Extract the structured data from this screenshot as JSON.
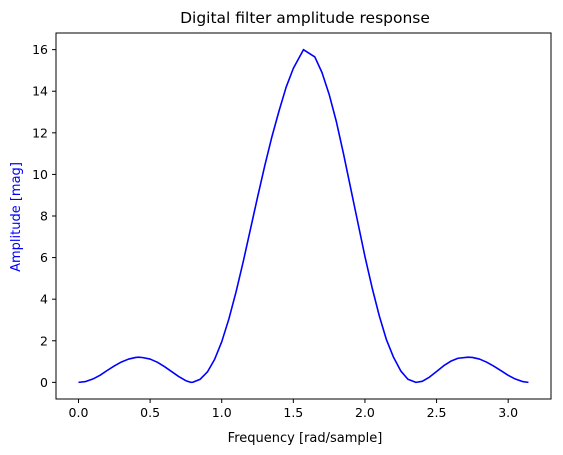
{
  "chart_data": {
    "type": "line",
    "title": "Digital filter amplitude response",
    "xlabel": "Frequency [rad/sample]",
    "ylabel": "Amplitude [mag]",
    "xlim": [
      -0.157,
      3.299
    ],
    "ylim": [
      -0.8,
      16.8
    ],
    "xticks": [
      0.0,
      0.5,
      1.0,
      1.5,
      2.0,
      2.5,
      3.0
    ],
    "xtick_labels": [
      "0.0",
      "0.5",
      "1.0",
      "1.5",
      "2.0",
      "2.5",
      "3.0"
    ],
    "yticks": [
      0,
      2,
      4,
      6,
      8,
      10,
      12,
      14,
      16
    ],
    "ytick_labels": [
      "0",
      "2",
      "4",
      "6",
      "8",
      "10",
      "12",
      "14",
      "16"
    ],
    "grid": false,
    "series": [
      {
        "color": "#0000ff",
        "ylabel_color": "#0000ff",
        "x": [
          0.0,
          0.05,
          0.1,
          0.15,
          0.2,
          0.25,
          0.3,
          0.35,
          0.4,
          0.42,
          0.45,
          0.5,
          0.55,
          0.6,
          0.65,
          0.7,
          0.75,
          0.785,
          0.8,
          0.85,
          0.9,
          0.95,
          1.0,
          1.05,
          1.1,
          1.15,
          1.2,
          1.25,
          1.3,
          1.35,
          1.4,
          1.45,
          1.5,
          1.571,
          1.65,
          1.7,
          1.75,
          1.8,
          1.85,
          1.9,
          1.95,
          2.0,
          2.05,
          2.1,
          2.15,
          2.2,
          2.25,
          2.3,
          2.356,
          2.4,
          2.45,
          2.5,
          2.55,
          2.6,
          2.65,
          2.72,
          2.75,
          2.8,
          2.85,
          2.9,
          2.95,
          3.0,
          3.05,
          3.1,
          3.1416
        ],
        "y": [
          0.0,
          0.04,
          0.16,
          0.34,
          0.57,
          0.79,
          0.98,
          1.12,
          1.2,
          1.21,
          1.19,
          1.12,
          0.97,
          0.76,
          0.52,
          0.28,
          0.08,
          0.0,
          0.01,
          0.15,
          0.5,
          1.1,
          1.95,
          3.05,
          4.35,
          5.8,
          7.35,
          8.9,
          10.4,
          11.8,
          13.05,
          14.2,
          15.1,
          16.0,
          15.65,
          14.9,
          13.85,
          12.55,
          11.0,
          9.35,
          7.7,
          6.05,
          4.55,
          3.2,
          2.05,
          1.2,
          0.55,
          0.15,
          0.0,
          0.05,
          0.25,
          0.52,
          0.8,
          1.02,
          1.16,
          1.21,
          1.2,
          1.12,
          0.97,
          0.78,
          0.56,
          0.34,
          0.16,
          0.04,
          0.0
        ]
      }
    ]
  }
}
